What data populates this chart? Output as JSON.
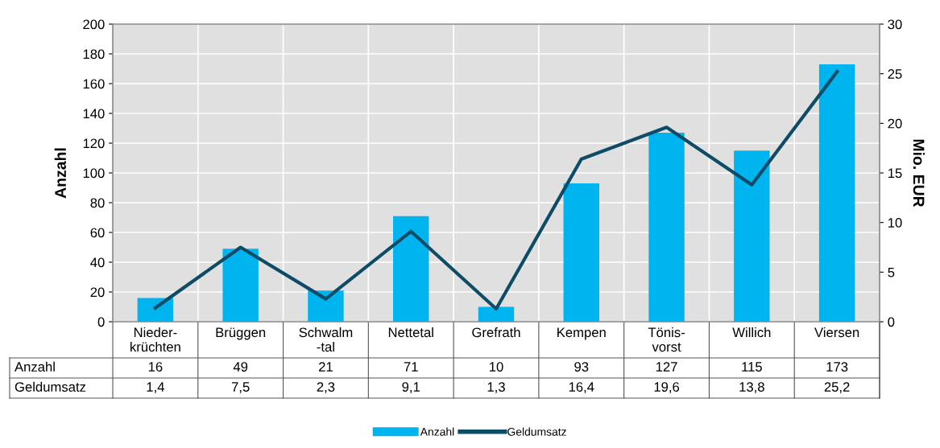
{
  "chart_data": {
    "type": "bar",
    "categories": [
      "Nieder-\nkrüchten",
      "Brüggen",
      "Schwalm\n-tal",
      "Nettetal",
      "Grefrath",
      "Kempen",
      "Tönis-\nvorst",
      "Willich",
      "Viersen"
    ],
    "series": [
      {
        "name": "Anzahl",
        "color": "#00b4f0",
        "values": [
          16,
          49,
          21,
          71,
          10,
          93,
          127,
          115,
          173
        ],
        "value_labels": [
          "16",
          "49",
          "21",
          "71",
          "10",
          "93",
          "127",
          "115",
          "173"
        ]
      },
      {
        "name": "Geldumsatz",
        "type": "line",
        "axis": "y2",
        "color": "#0e4b66",
        "values": [
          1.4,
          7.5,
          2.3,
          9.1,
          1.3,
          16.4,
          19.6,
          13.8,
          25.2
        ],
        "value_labels": [
          "1,4",
          "7,5",
          "2,3",
          "9,1",
          "1,3",
          "16,4",
          "19,6",
          "13,8",
          "25,2"
        ]
      }
    ],
    "ylabel": "Anzahl",
    "y2label": "Mio. EUR",
    "ylim": [
      0,
      200
    ],
    "yticks": [
      0,
      20,
      40,
      60,
      80,
      100,
      120,
      140,
      160,
      180,
      200
    ],
    "y2lim": [
      0,
      30
    ],
    "y2ticks": [
      0,
      5,
      10,
      15,
      20,
      25,
      30
    ],
    "grid": true,
    "legend": "bottom",
    "marker": "none",
    "line_style": "solid"
  }
}
